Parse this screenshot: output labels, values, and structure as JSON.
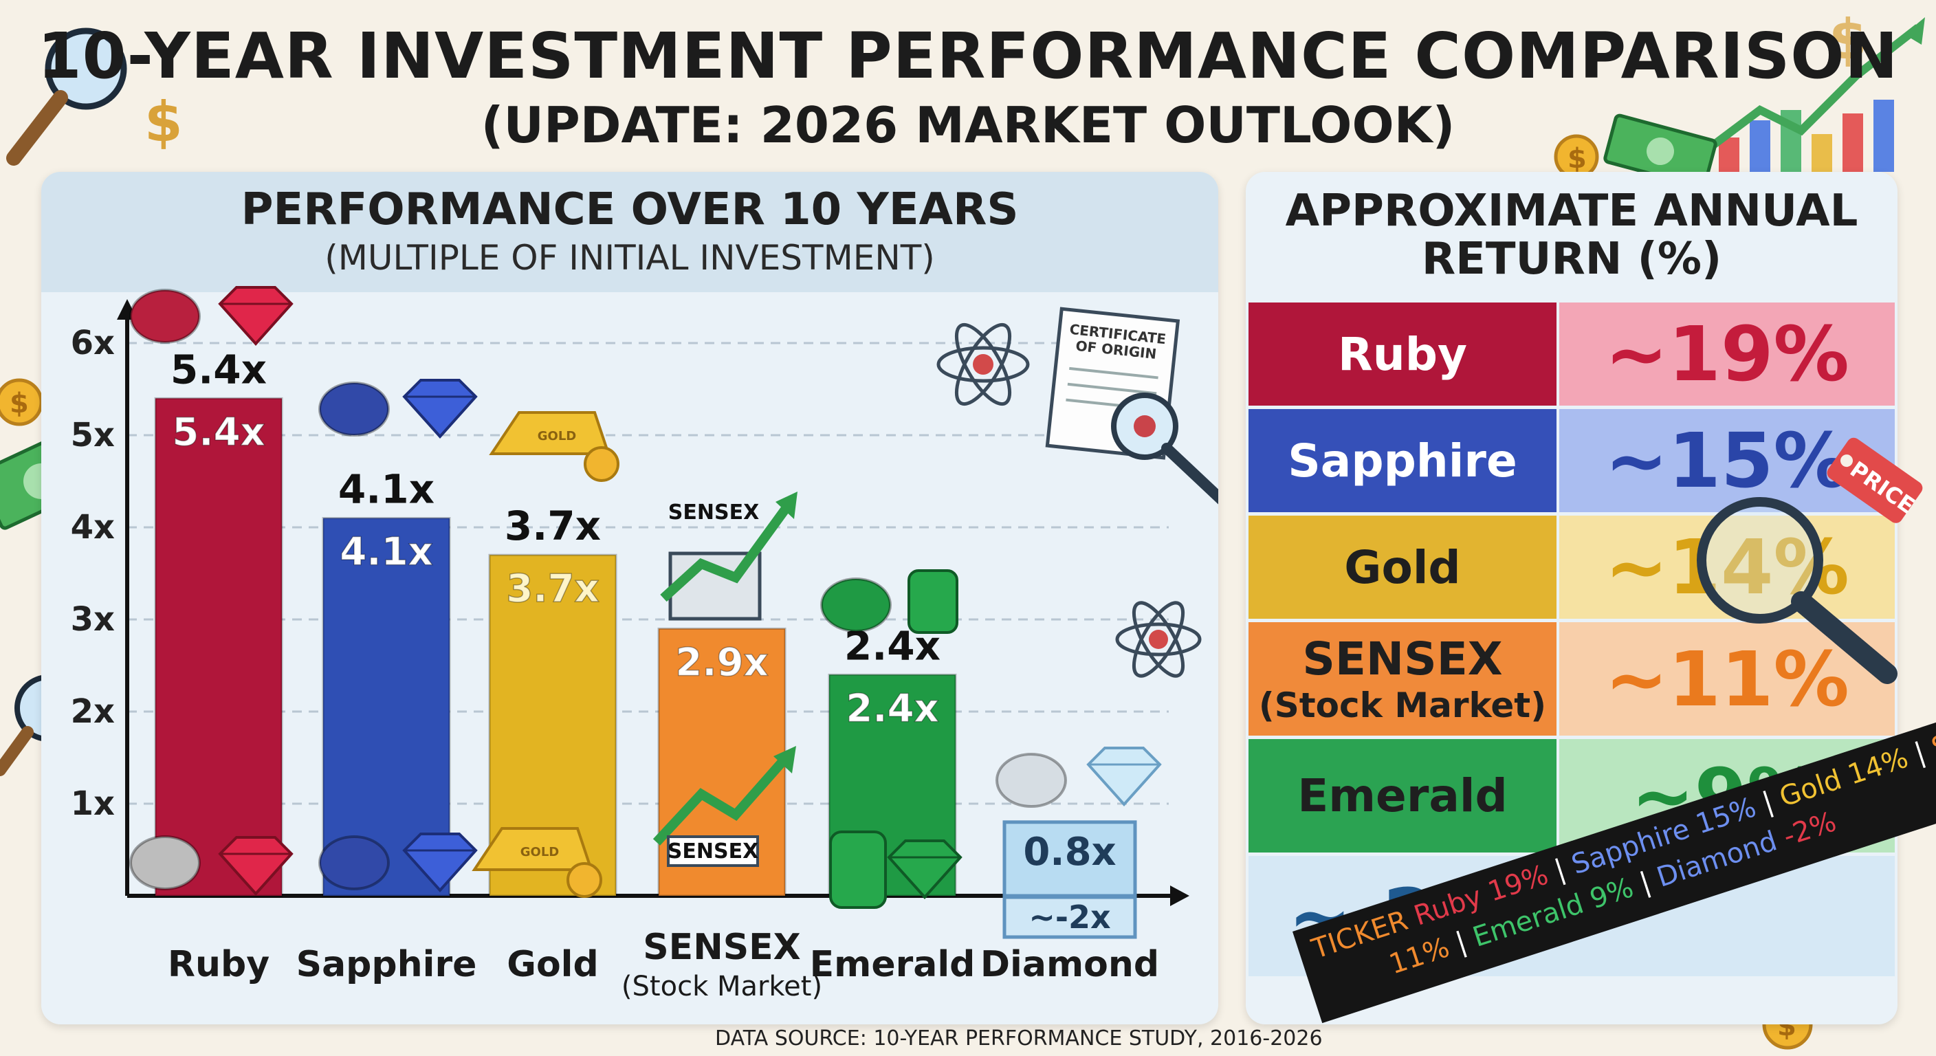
{
  "header": {
    "title": "10-YEAR INVESTMENT PERFORMANCE COMPARISON",
    "subtitle": "(UPDATE: 2026 MARKET OUTLOOK)"
  },
  "chart_data": {
    "type": "bar",
    "title": "PERFORMANCE OVER 10 YEARS",
    "subtitle": "(MULTIPLE OF INITIAL INVESTMENT)",
    "categories": [
      "Ruby",
      "Sapphire",
      "Gold",
      "SENSEX",
      "Emerald",
      "Diamond"
    ],
    "category_sublabels": [
      "",
      "",
      "",
      "(Stock Market)",
      "",
      ""
    ],
    "values": [
      5.4,
      4.1,
      3.7,
      2.9,
      2.4,
      0.8
    ],
    "value_labels": [
      "5.4x",
      "4.1x",
      "3.7x",
      "2.9x",
      "2.4x",
      "0.8x"
    ],
    "outer_labels": [
      "5.4x",
      "4.1x",
      "3.7x",
      "",
      "2.4x",
      ""
    ],
    "extra_label_diamond": "~-2x",
    "y_ticks": [
      "1x",
      "2x",
      "3x",
      "4x",
      "5x",
      "6x"
    ],
    "ylim": [
      0,
      6
    ],
    "grid": true,
    "colors": [
      "#b0163a",
      "#2f4fb4",
      "#e2b422",
      "#f08a2e",
      "#1f9a44",
      "#b8dcf2"
    ]
  },
  "table": {
    "title_line1": "APPROXIMATE ANNUAL",
    "title_line2": "RETURN (%)",
    "rows": [
      {
        "name": "Ruby",
        "sub": "",
        "ret": "~19%",
        "name_color": "#b0163a",
        "ret_bg": "#f3a6b6",
        "ret_color": "#c41c3c"
      },
      {
        "name": "Sapphire",
        "sub": "",
        "ret": "~15%",
        "name_color": "#3550b8",
        "ret_bg": "#aabdf0",
        "ret_color": "#2a45a8"
      },
      {
        "name": "Gold",
        "sub": "",
        "ret": "~14%",
        "name_color": "#e2b430",
        "ret_bg": "#f6e2a2",
        "ret_color": "#d9a316"
      },
      {
        "name": "SENSEX",
        "sub": "(Stock Market)",
        "ret": "~11%",
        "name_color": "#f08a3a",
        "ret_bg": "#f8cfaa",
        "ret_color": "#ea7a1e"
      },
      {
        "name": "Emerald",
        "sub": "",
        "ret": "~9%",
        "name_color": "#2ba352",
        "ret_bg": "#b9e6bf",
        "ret_color": "#1f8f3c"
      },
      {
        "name": "",
        "sub": "",
        "ret": "~-2%",
        "name_color": "#d6e8f5",
        "ret_bg": "#d6e8f5",
        "ret_color": "#1f5a90"
      }
    ]
  },
  "decor": {
    "certificate_line1": "CERTIFICATE",
    "certificate_line2": "OF ORIGIN",
    "sensex_sign": "SENSEX",
    "gold_bar_label": "GOLD",
    "price_tag": "PRICE"
  },
  "source": "DATA SOURCE: 10-YEAR PERFORMANCE STUDY, 2016-2026",
  "ticker": {
    "line1": [
      {
        "text": "TICKER ",
        "color": "#f08a2e"
      },
      {
        "text": "Ruby 19% ",
        "color": "#e23a4a"
      },
      {
        "text": "| ",
        "color": "#ffffff"
      },
      {
        "text": "Sapphire 15% ",
        "color": "#6d8ff0"
      },
      {
        "text": "| ",
        "color": "#ffffff"
      },
      {
        "text": "Gold 14% ",
        "color": "#f1c232"
      },
      {
        "text": "| ",
        "color": "#ffffff"
      },
      {
        "text": "Sensex",
        "color": "#f08a2e"
      }
    ],
    "line2": [
      {
        "text": "11% ",
        "color": "#f08a2e"
      },
      {
        "text": "| ",
        "color": "#ffffff"
      },
      {
        "text": "Emerald 9% ",
        "color": "#3ec46a"
      },
      {
        "text": "| ",
        "color": "#ffffff"
      },
      {
        "text": "Diamond ",
        "color": "#6d8ff0"
      },
      {
        "text": "-2%",
        "color": "#e23a4a"
      }
    ]
  }
}
